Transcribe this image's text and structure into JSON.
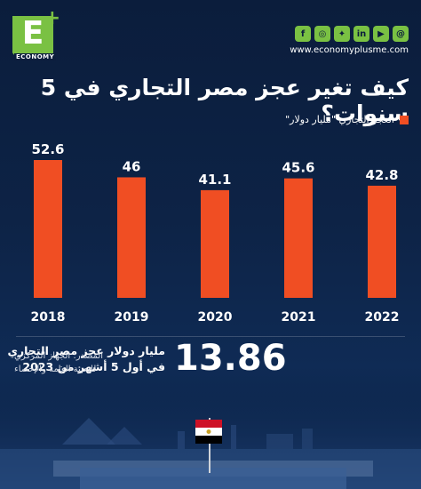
{
  "brand": {
    "logo_letter": "E",
    "logo_plus": "+",
    "logo_word": "ECONOMY",
    "site_url": "www.economyplusme.com",
    "accent_color": "#7ac143"
  },
  "social_icons": [
    "threads-icon",
    "youtube-icon",
    "linkedin-icon",
    "twitter-icon",
    "instagram-icon",
    "facebook-icon"
  ],
  "title": "كيف تغير عجز مصر التجاري في 5 سنوات؟",
  "chart_data": {
    "type": "bar",
    "categories": [
      "2018",
      "2019",
      "2020",
      "2021",
      "2022"
    ],
    "values": [
      52.6,
      46,
      41.1,
      45.6,
      42.8
    ],
    "value_labels": [
      "52.6",
      "46",
      "41.1",
      "45.6",
      "42.8"
    ],
    "legend": [
      {
        "name": "العجز التجاري \"مليار دولار\"",
        "color": "#f04e23"
      }
    ],
    "legend_position": "top-right",
    "grid": false
  },
  "stat": {
    "value": "13.86",
    "line1": "مليار دولار عجز مصر التجاري",
    "line2": "في أول 5 أشهر من 2023"
  },
  "source": {
    "line1": "المصدر: الجهاز المركزي",
    "line2": "للتعبئة العامة والإحصاء"
  },
  "flag_colors": [
    "#ce1126",
    "#ffffff",
    "#000000"
  ]
}
